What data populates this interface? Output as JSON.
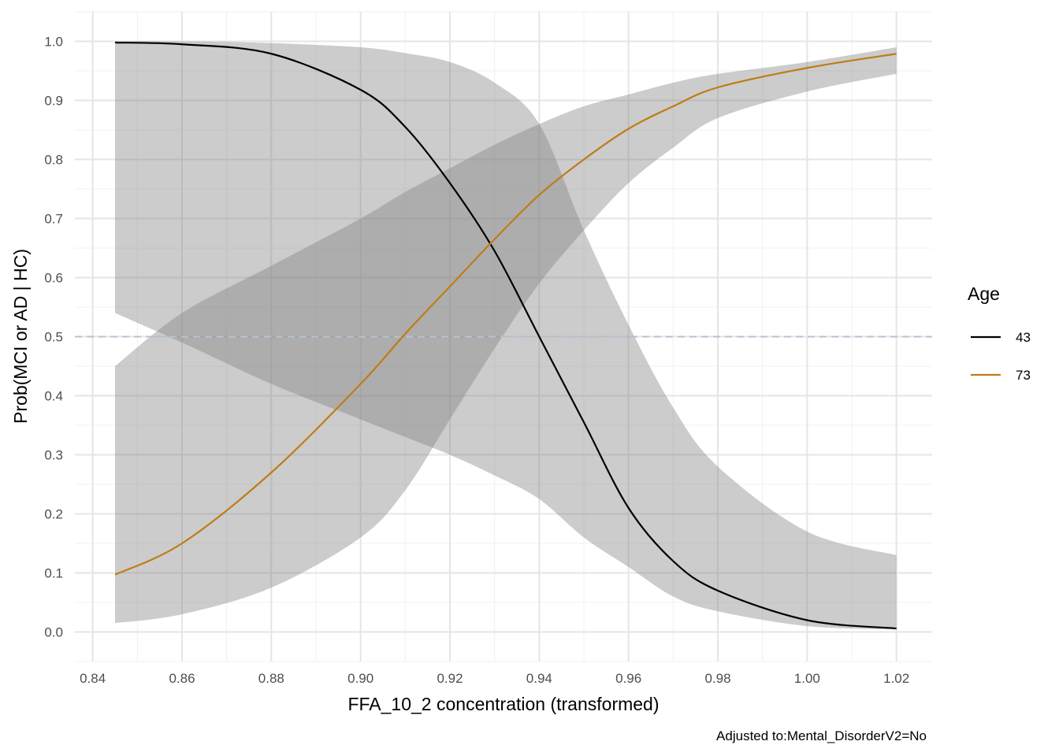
{
  "chart_data": {
    "type": "line",
    "title": "",
    "xlabel": "FFA_10_2 concentration (transformed)",
    "ylabel": "Prob(MCI or AD | HC)",
    "caption": "Adjusted to:Mental_DisorderV2=No",
    "xlim": [
      0.836,
      1.028
    ],
    "ylim": [
      -0.05,
      1.05
    ],
    "x_ticks": [
      0.84,
      0.86,
      0.88,
      0.9,
      0.92,
      0.94,
      0.96,
      0.98,
      1.0,
      1.02
    ],
    "x_tick_labels": [
      "0.84",
      "0.86",
      "0.88",
      "0.90",
      "0.92",
      "0.94",
      "0.96",
      "0.98",
      "1.00",
      "1.02"
    ],
    "y_ticks": [
      0.0,
      0.1,
      0.2,
      0.3,
      0.4,
      0.5,
      0.6,
      0.7,
      0.8,
      0.9,
      1.0
    ],
    "y_tick_labels": [
      "0.0",
      "0.1",
      "0.2",
      "0.3",
      "0.4",
      "0.5",
      "0.6",
      "0.7",
      "0.8",
      "0.9",
      "1.0"
    ],
    "grid": true,
    "reference_line": {
      "y": 0.5,
      "style": "dashed",
      "color": "#b3c2d3"
    },
    "legend": {
      "title": "Age",
      "position": "right"
    },
    "series": [
      {
        "name": "43",
        "color": "#000000",
        "x": [
          0.845,
          0.86,
          0.88,
          0.9,
          0.91,
          0.92,
          0.93,
          0.94,
          0.95,
          0.96,
          0.97,
          0.98,
          1.0,
          1.02
        ],
        "y": [
          0.998,
          0.995,
          0.979,
          0.918,
          0.855,
          0.76,
          0.645,
          0.5,
          0.355,
          0.21,
          0.12,
          0.07,
          0.02,
          0.006
        ],
        "lower": [
          0.54,
          0.49,
          0.42,
          0.36,
          0.33,
          0.3,
          0.265,
          0.225,
          0.16,
          0.11,
          0.06,
          0.035,
          0.01,
          0.004
        ],
        "upper": [
          1.0,
          1.0,
          0.997,
          0.99,
          0.98,
          0.965,
          0.93,
          0.86,
          0.68,
          0.52,
          0.38,
          0.28,
          0.17,
          0.13
        ]
      },
      {
        "name": "73",
        "color": "#c07c16",
        "x": [
          0.845,
          0.86,
          0.88,
          0.9,
          0.91,
          0.92,
          0.93,
          0.94,
          0.95,
          0.96,
          0.97,
          0.98,
          1.0,
          1.02
        ],
        "y": [
          0.097,
          0.15,
          0.27,
          0.42,
          0.505,
          0.585,
          0.665,
          0.74,
          0.8,
          0.852,
          0.89,
          0.922,
          0.955,
          0.979
        ],
        "lower": [
          0.015,
          0.03,
          0.075,
          0.16,
          0.24,
          0.36,
          0.48,
          0.59,
          0.68,
          0.76,
          0.82,
          0.87,
          0.915,
          0.945
        ],
        "upper": [
          0.45,
          0.54,
          0.62,
          0.7,
          0.745,
          0.785,
          0.825,
          0.86,
          0.89,
          0.91,
          0.93,
          0.945,
          0.965,
          0.99
        ]
      }
    ]
  }
}
